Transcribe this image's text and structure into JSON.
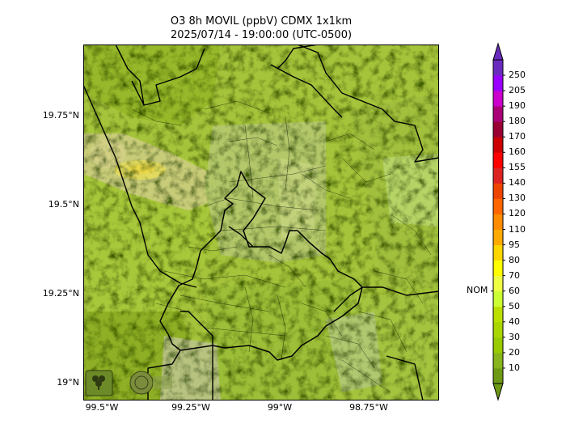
{
  "title": {
    "line1": "O3 8h MOVIL (ppbV) CDMX 1x1km",
    "line2": "2025/07/14 - 19:00:00 (UTC-0500)"
  },
  "axes": {
    "latitude_labels": [
      "19.75°N",
      "19.5°N",
      "19.25°N",
      "19°N"
    ],
    "longitude_labels": [
      "99.5°W",
      "99.25°W",
      "99°W",
      "98.75°W"
    ]
  },
  "map": {
    "variable": "O3 8h moving average",
    "units": "ppbV",
    "dominant_range_ppbv": [
      30,
      60
    ],
    "hotspot": {
      "location": "northwest",
      "range_ppbv": [
        60,
        70
      ]
    },
    "logos": [
      "SEDEMA",
      "Ciudad de México"
    ]
  },
  "colorbar": {
    "ticks": [
      "10",
      "20",
      "30",
      "40",
      "50",
      "60",
      "70",
      "80",
      "95",
      "110",
      "120",
      "130",
      "140",
      "155",
      "160",
      "170",
      "180",
      "190",
      "205",
      "250"
    ],
    "colors": [
      "#6e9914",
      "#88b41c",
      "#99cc00",
      "#aad600",
      "#bbe000",
      "#ccff33",
      "#eeff44",
      "#ffff00",
      "#ffd700",
      "#ffaa00",
      "#ff8c00",
      "#ff6600",
      "#ee4400",
      "#dd2222",
      "#ff0000",
      "#cc0000",
      "#990033",
      "#aa0077",
      "#cc00cc",
      "#9900ff",
      "#6a2bbf"
    ],
    "reference_label": "NOM",
    "reference_value": 60
  }
}
